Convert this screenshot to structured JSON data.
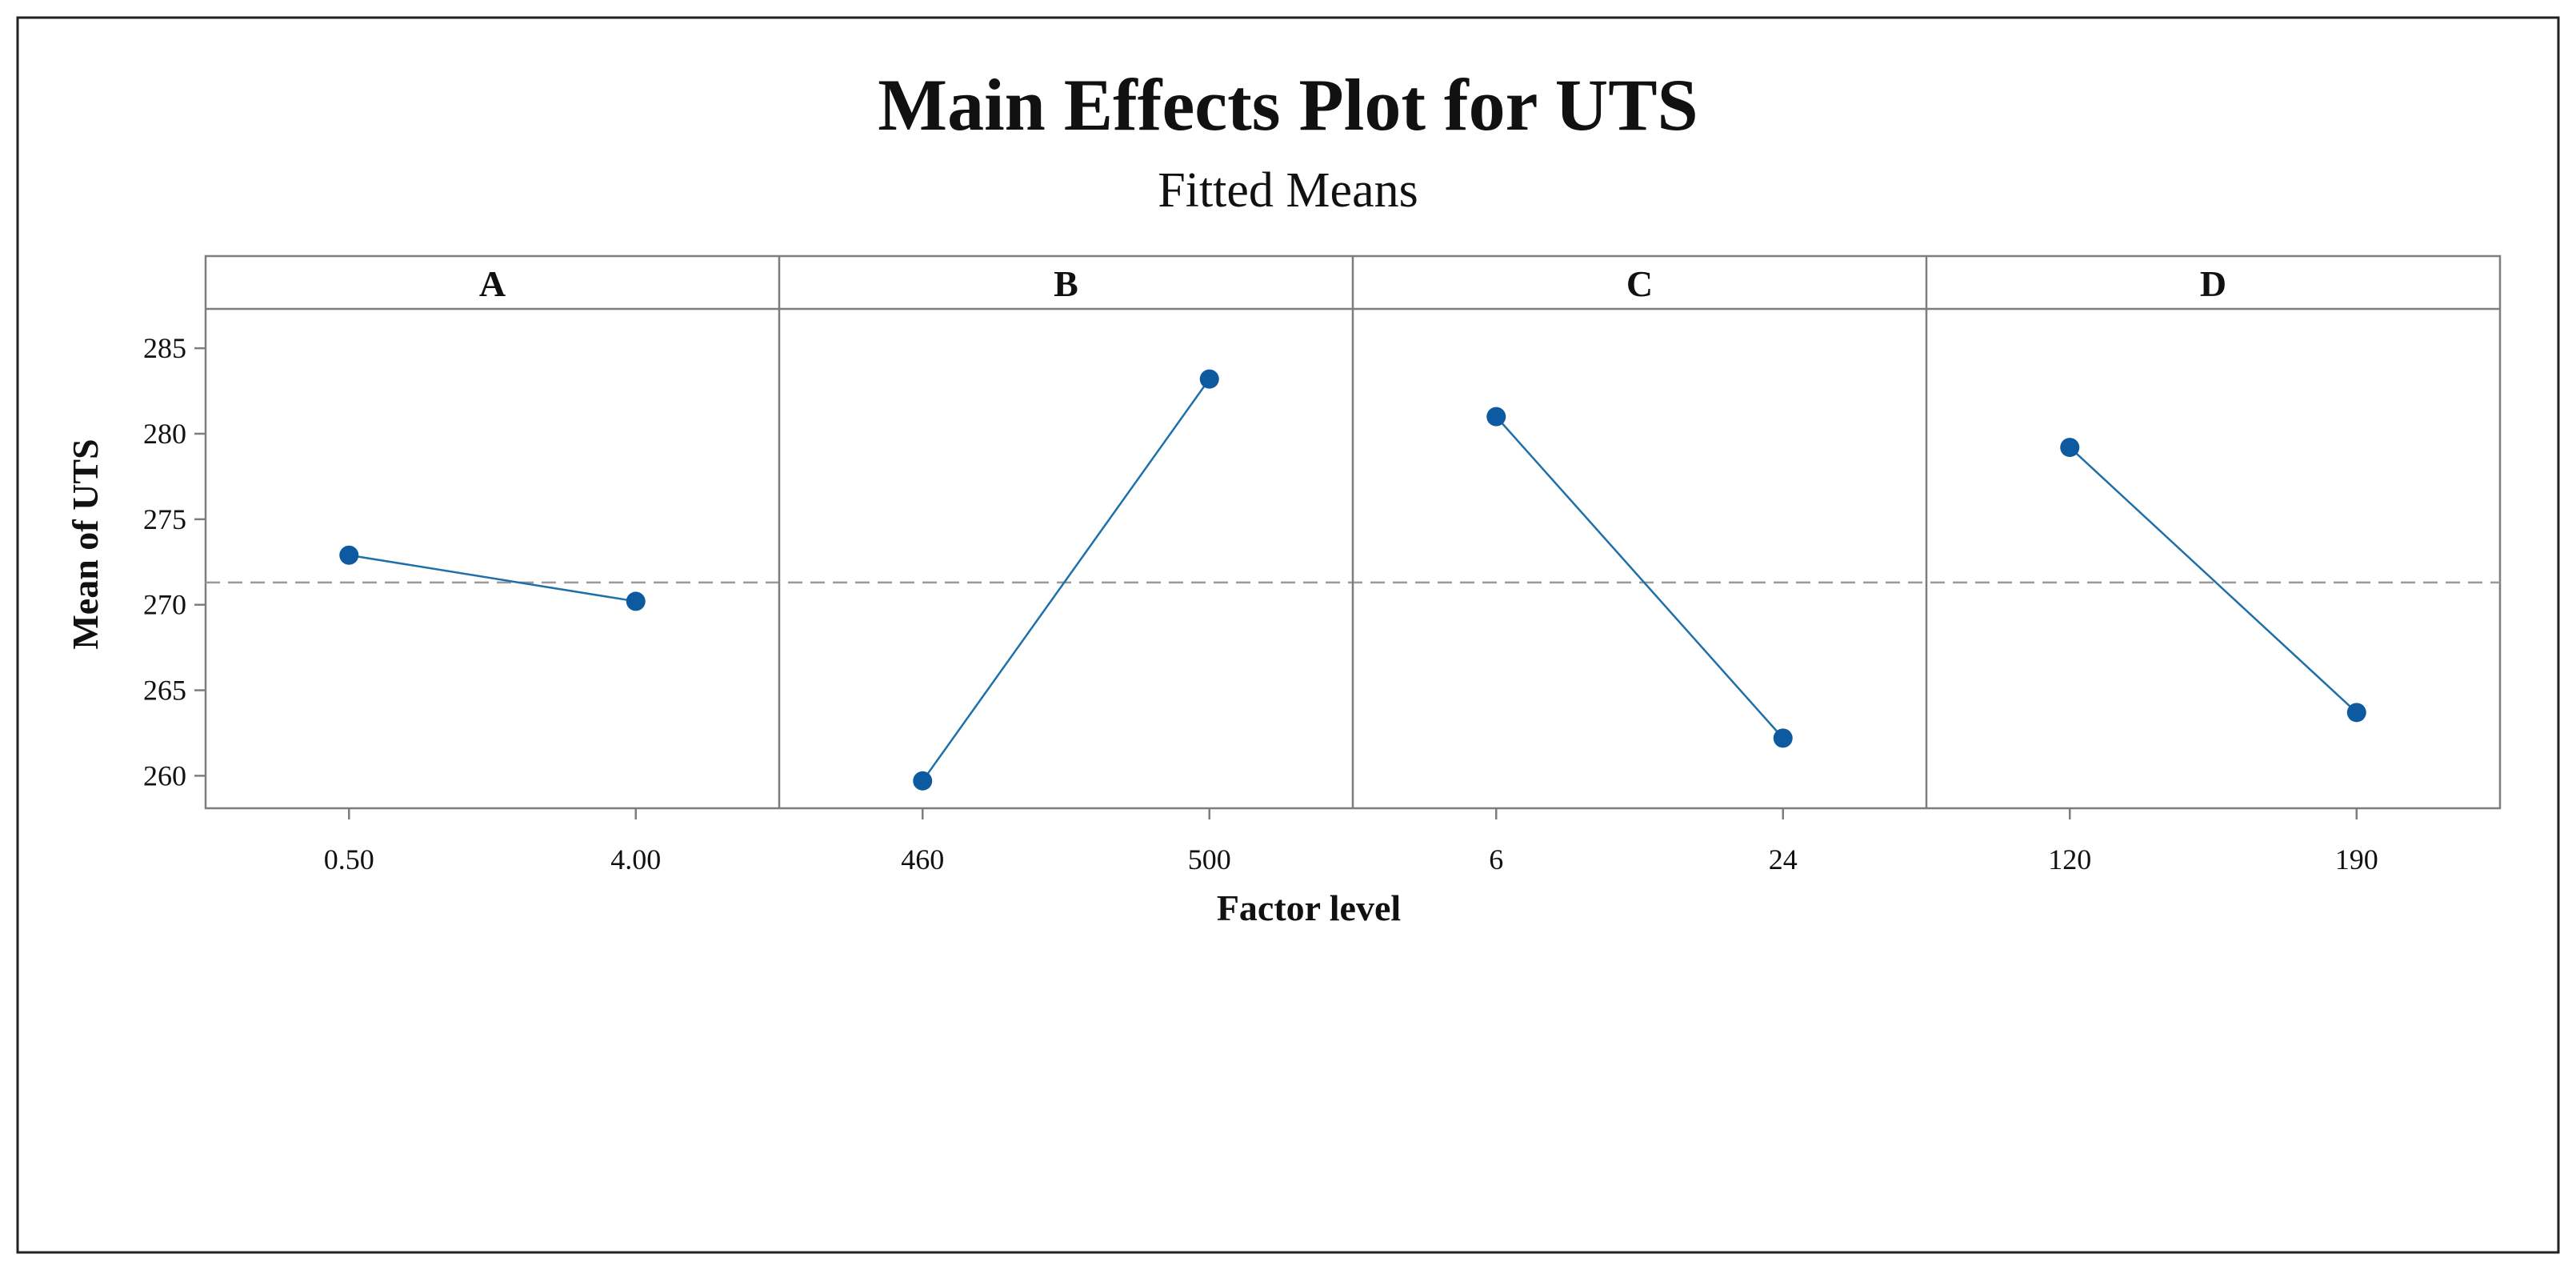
{
  "chart_data": {
    "type": "line",
    "title": "Main Effects Plot for UTS",
    "subtitle": "Fitted Means",
    "xlabel": "Factor level",
    "ylabel": "Mean of UTS",
    "ylim": [
      258.1,
      287.3
    ],
    "yticks": [
      "260",
      "265",
      "270",
      "275",
      "280",
      "285"
    ],
    "ytick_values": [
      260,
      265,
      270,
      275,
      280,
      285
    ],
    "reference_line": 271.3,
    "grid": false,
    "colors": {
      "series": "#1f6fa8",
      "marker": "#0d5aa0",
      "reference": "#9a9a9a",
      "frame": "#7d7d7d"
    },
    "panels": [
      {
        "factor": "A",
        "categories": [
          "0.50",
          "4.00"
        ],
        "values": [
          272.9,
          270.2
        ]
      },
      {
        "factor": "B",
        "categories": [
          "460",
          "500"
        ],
        "values": [
          259.7,
          283.2
        ]
      },
      {
        "factor": "C",
        "categories": [
          "6",
          "24"
        ],
        "values": [
          281.0,
          262.2
        ]
      },
      {
        "factor": "D",
        "categories": [
          "120",
          "190"
        ],
        "values": [
          279.2,
          263.7
        ]
      }
    ]
  }
}
